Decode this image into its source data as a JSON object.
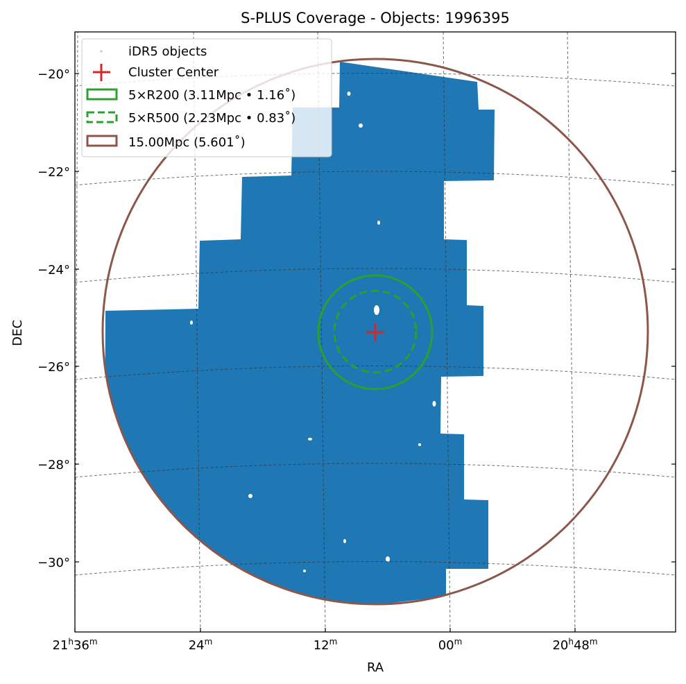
{
  "chart_data": {
    "type": "scatter",
    "title": "S-PLUS Coverage - Objects: 1996395",
    "xlabel": "RA",
    "ylabel": "DEC",
    "x_tick_labels": [
      {
        "main": "21",
        "unit1": "h",
        "sub": "36",
        "unit2": "m"
      },
      {
        "main": "",
        "unit1": "",
        "sub": "24",
        "unit2": "m"
      },
      {
        "main": "",
        "unit1": "",
        "sub": "12",
        "unit2": "m"
      },
      {
        "main": "",
        "unit1": "",
        "sub": "00",
        "unit2": "m"
      },
      {
        "main": "20",
        "unit1": "h",
        "sub": "48",
        "unit2": "m"
      }
    ],
    "y_tick_labels": [
      "−20°",
      "−22°",
      "−24°",
      "−26°",
      "−28°",
      "−30°"
    ],
    "dec_ticks_deg": [
      -20,
      -22,
      -24,
      -26,
      -28,
      -30
    ],
    "cluster_center": {
      "ra_label": "21h07m",
      "dec_deg": -25.3
    },
    "grid": true,
    "legend_position": "top-left",
    "series": [
      {
        "name": "iDR5 objects",
        "kind": "scatter",
        "color": "#1f77b4",
        "count": 1996395
      },
      {
        "name": "Cluster Center",
        "kind": "marker",
        "marker": "plus",
        "color": "#d62728"
      },
      {
        "name": "5×R200 (3.11Mpc • 1.16˚)",
        "kind": "circle",
        "radius_deg": 1.16,
        "color": "#2ca02c",
        "style": "solid"
      },
      {
        "name": "5×R500 (2.23Mpc • 0.83˚)",
        "kind": "circle",
        "radius_deg": 0.83,
        "color": "#2ca02c",
        "style": "dashed"
      },
      {
        "name": "15.00Mpc (5.601˚)",
        "kind": "circle",
        "radius_deg": 5.601,
        "color": "#8c564b",
        "style": "solid"
      }
    ]
  }
}
